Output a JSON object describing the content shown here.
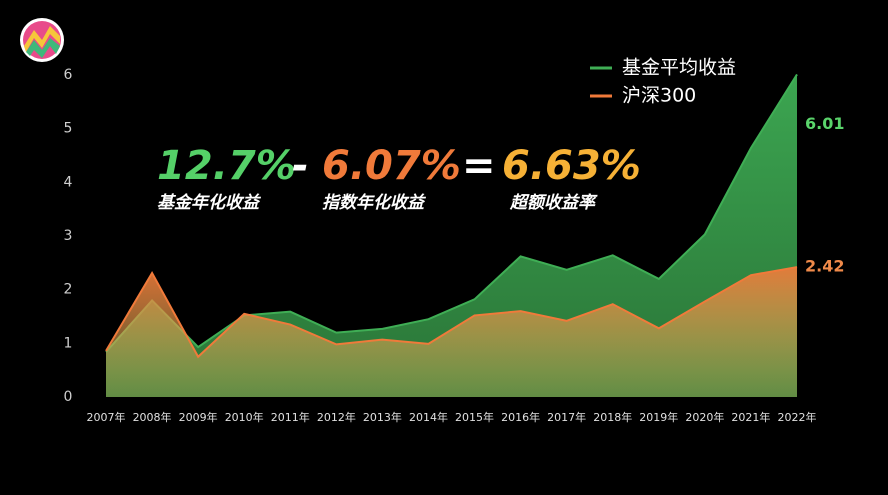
{
  "chart_data": {
    "type": "area",
    "categories": [
      "2007年",
      "2008年",
      "2009年",
      "2010年",
      "2011年",
      "2012年",
      "2013年",
      "2014年",
      "2015年",
      "2016年",
      "2017年",
      "2018年",
      "2019年",
      "2020年",
      "2021年",
      "2022年"
    ],
    "series": [
      {
        "name": "基金平均收益",
        "color": "#3fae55",
        "values": [
          0.84,
          1.8,
          0.93,
          1.52,
          1.59,
          1.2,
          1.27,
          1.45,
          1.82,
          2.62,
          2.37,
          2.64,
          2.2,
          3.03,
          4.64,
          6.01
        ]
      },
      {
        "name": "沪深300",
        "color": "#f07a3a",
        "values": [
          0.86,
          2.31,
          0.75,
          1.55,
          1.35,
          0.98,
          1.07,
          0.99,
          1.52,
          1.6,
          1.42,
          1.73,
          1.28,
          1.78,
          2.27,
          2.42
        ]
      }
    ],
    "ylim": [
      0,
      6
    ],
    "yticks": [
      0,
      1,
      2,
      3,
      4,
      5,
      6
    ],
    "formula": [
      {
        "value": "12.7%",
        "caption": "基金年化收益",
        "color": "#55d068"
      },
      {
        "value": "6.07%",
        "caption": "指数年化收益",
        "color": "#f07a3a"
      },
      {
        "value": "6.63%",
        "caption": "超额收益率",
        "color": "#f6b136"
      }
    ],
    "operators": [
      "-",
      "="
    ]
  }
}
